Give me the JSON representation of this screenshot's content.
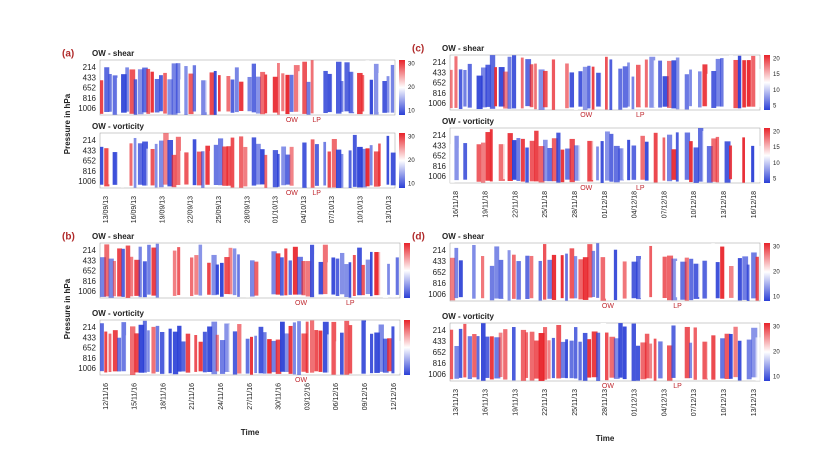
{
  "figure": {
    "y_axis_label": "Pressure in hPa",
    "x_axis_label": "Time",
    "panels": [
      {
        "label": "(a)",
        "top_title": "OW - shear",
        "bottom_title": "OW - vorticity",
        "yticks": [
          "214",
          "433",
          "652",
          "816",
          "1006"
        ],
        "colorbar_ticks": [
          "30",
          "20",
          "10"
        ],
        "top_markers": [
          "OW",
          "LP"
        ],
        "bottom_markers": [
          "OW",
          "LP"
        ],
        "xticks": [
          "13/09/13",
          "16/09/13",
          "19/09/13",
          "22/09/13",
          "25/09/13",
          "28/09/13",
          "01/10/13",
          "04/10/13",
          "07/10/13",
          "10/10/13",
          "13/10/13"
        ]
      },
      {
        "label": "(c)",
        "top_title": "OW - shear",
        "bottom_title": "OW - vorticity",
        "yticks": [
          "214",
          "433",
          "652",
          "816",
          "1006"
        ],
        "colorbar_ticks": [
          "20",
          "15",
          "10",
          "5"
        ],
        "top_markers": [
          "OW",
          "LP"
        ],
        "bottom_markers": [
          "OW",
          "LP"
        ],
        "xticks": [
          "16/11/18",
          "19/11/18",
          "22/11/18",
          "25/11/18",
          "28/11/18",
          "01/12/18",
          "04/12/18",
          "07/12/18",
          "10/12/18",
          "13/12/18",
          "16/12/18"
        ]
      },
      {
        "label": "(b)",
        "top_title": "OW - shear",
        "bottom_title": "OW - vorticity",
        "yticks": [
          "214",
          "433",
          "652",
          "816",
          "1006"
        ],
        "colorbar_ticks": [],
        "top_markers": [
          "OW",
          "LP"
        ],
        "bottom_markers": [
          "OW"
        ],
        "xticks": [
          "12/11/16",
          "15/11/16",
          "18/11/16",
          "21/11/16",
          "24/11/16",
          "27/11/16",
          "30/11/16",
          "03/12/16",
          "06/12/16",
          "09/12/16",
          "12/12/16"
        ]
      },
      {
        "label": "(d)",
        "top_title": "OW - shear",
        "bottom_title": "OW - vorticity",
        "yticks": [
          "214",
          "433",
          "652",
          "816",
          "1006"
        ],
        "colorbar_ticks": [
          "30",
          "20",
          "10"
        ],
        "top_markers": [
          "OW",
          "LP"
        ],
        "bottom_markers": [
          "OW",
          "LP"
        ],
        "xticks": [
          "13/11/13",
          "16/11/13",
          "19/11/13",
          "22/11/13",
          "25/11/13",
          "28/11/13",
          "01/12/13",
          "04/12/13",
          "07/12/13",
          "10/12/13",
          "13/12/13"
        ]
      }
    ]
  }
}
